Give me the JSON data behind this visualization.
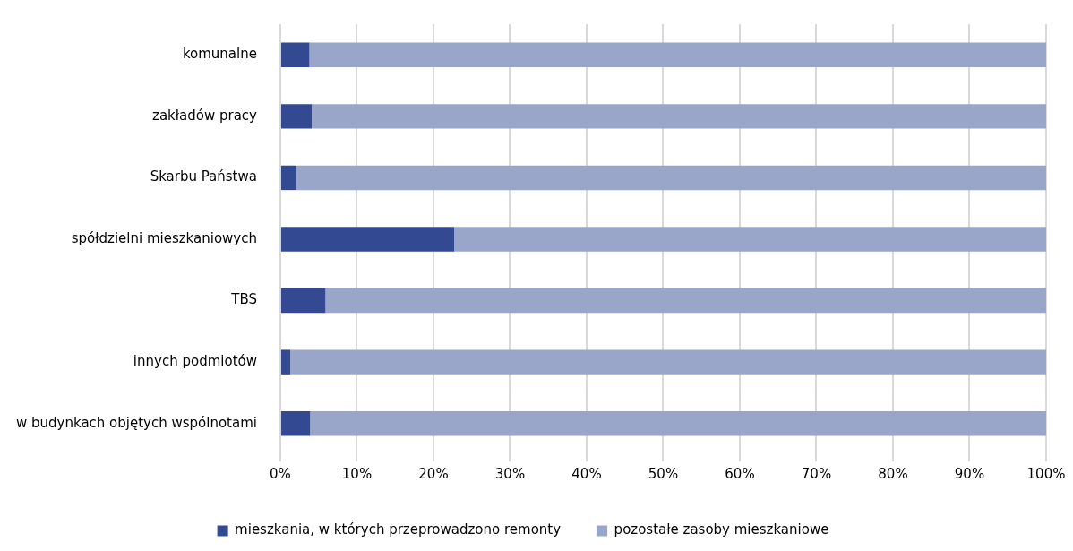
{
  "chart_data": {
    "type": "bar",
    "orientation": "horizontal",
    "stacked": true,
    "categories": [
      "komunalne",
      "zakładów pracy",
      "Skarbu Państwa",
      "spółdzielni mieszkaniowych",
      "TBS",
      "innych podmiotów",
      "w budynkach objętych wspólnotami"
    ],
    "series": [
      {
        "name": "mieszkania, w których przeprowadzono remonty",
        "color": "#334a92",
        "values": [
          3.8,
          4.1,
          2.1,
          22.7,
          5.9,
          1.3,
          3.9
        ]
      },
      {
        "name": "pozostałe zasoby mieszkaniowe",
        "color": "#99a6c9",
        "values": [
          96.2,
          95.9,
          97.9,
          77.3,
          94.1,
          98.7,
          96.1
        ]
      }
    ],
    "xlim": [
      0,
      100
    ],
    "xticks": [
      {
        "value": 0,
        "label": "0%"
      },
      {
        "value": 10,
        "label": "10%"
      },
      {
        "value": 20,
        "label": "20%"
      },
      {
        "value": 30,
        "label": "30%"
      },
      {
        "value": 40,
        "label": "40%"
      },
      {
        "value": 50,
        "label": "50%"
      },
      {
        "value": 60,
        "label": "60%"
      },
      {
        "value": 70,
        "label": "70%"
      },
      {
        "value": 80,
        "label": "80%"
      },
      {
        "value": 90,
        "label": "90%"
      },
      {
        "value": 100,
        "label": "100%"
      }
    ],
    "grid": "x",
    "legend": "bottom"
  }
}
